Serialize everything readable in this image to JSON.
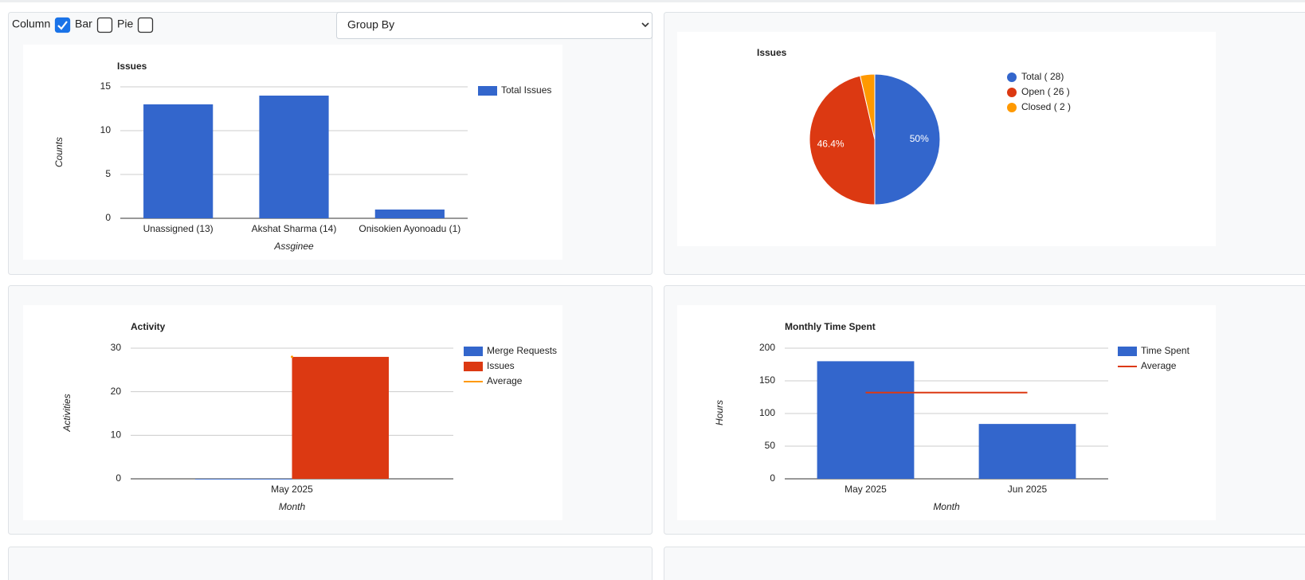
{
  "controls": {
    "options": [
      {
        "label": "Column",
        "checked": true
      },
      {
        "label": "Bar",
        "checked": false
      },
      {
        "label": "Pie",
        "checked": false
      }
    ],
    "select": "Group By"
  },
  "chart_data": [
    {
      "type": "bar",
      "title": "Issues",
      "categories": [
        "Unassigned (13)",
        "Akshat Sharma (14)",
        "Onisokien Ayonoadu (1)"
      ],
      "series": [
        {
          "name": "Total Issues",
          "color": "#3366cc",
          "values": [
            13,
            14,
            1
          ]
        }
      ],
      "ylim": [
        0,
        15
      ],
      "yticks": [
        0,
        5,
        10,
        15
      ],
      "y_label": "Counts",
      "x_label": "Assginee",
      "grid": true
    },
    {
      "type": "pie",
      "title": "Issues",
      "categories": [
        "Total ( 28)",
        "Open ( 26 )",
        "Closed ( 2 )"
      ],
      "values": [
        50,
        46.4,
        3.6
      ],
      "value_labels": [
        "50%",
        "46.4%",
        null
      ],
      "colors": [
        "#3366cc",
        "#dc3912",
        "#ff9900"
      ]
    },
    {
      "type": "bar",
      "title": "Activity",
      "categories": [
        "May 2025"
      ],
      "series": [
        {
          "name": "Merge Requests",
          "color": "#3366cc",
          "values": [
            0
          ]
        },
        {
          "name": "Issues",
          "color": "#dc3912",
          "values": [
            28
          ]
        },
        {
          "name": "Average",
          "color": "#ff9900",
          "values": [
            28
          ],
          "type": "line"
        }
      ],
      "ylim": [
        0,
        30
      ],
      "yticks": [
        0,
        10,
        20,
        30
      ],
      "y_label": "Activities",
      "x_label": "Month",
      "grid": true
    },
    {
      "type": "bar",
      "title": "Monthly Time Spent",
      "categories": [
        "May 2025",
        "Jun 2025"
      ],
      "series": [
        {
          "name": "Time Spent",
          "color": "#3366cc",
          "values": [
            180,
            84
          ]
        },
        {
          "name": "Average",
          "color": "#dc3912",
          "values": [
            132,
            132
          ],
          "type": "line"
        }
      ],
      "ylim": [
        0,
        200
      ],
      "yticks": [
        0,
        50,
        100,
        150,
        200
      ],
      "y_label": "Hours",
      "x_label": "Month",
      "grid": true
    }
  ]
}
